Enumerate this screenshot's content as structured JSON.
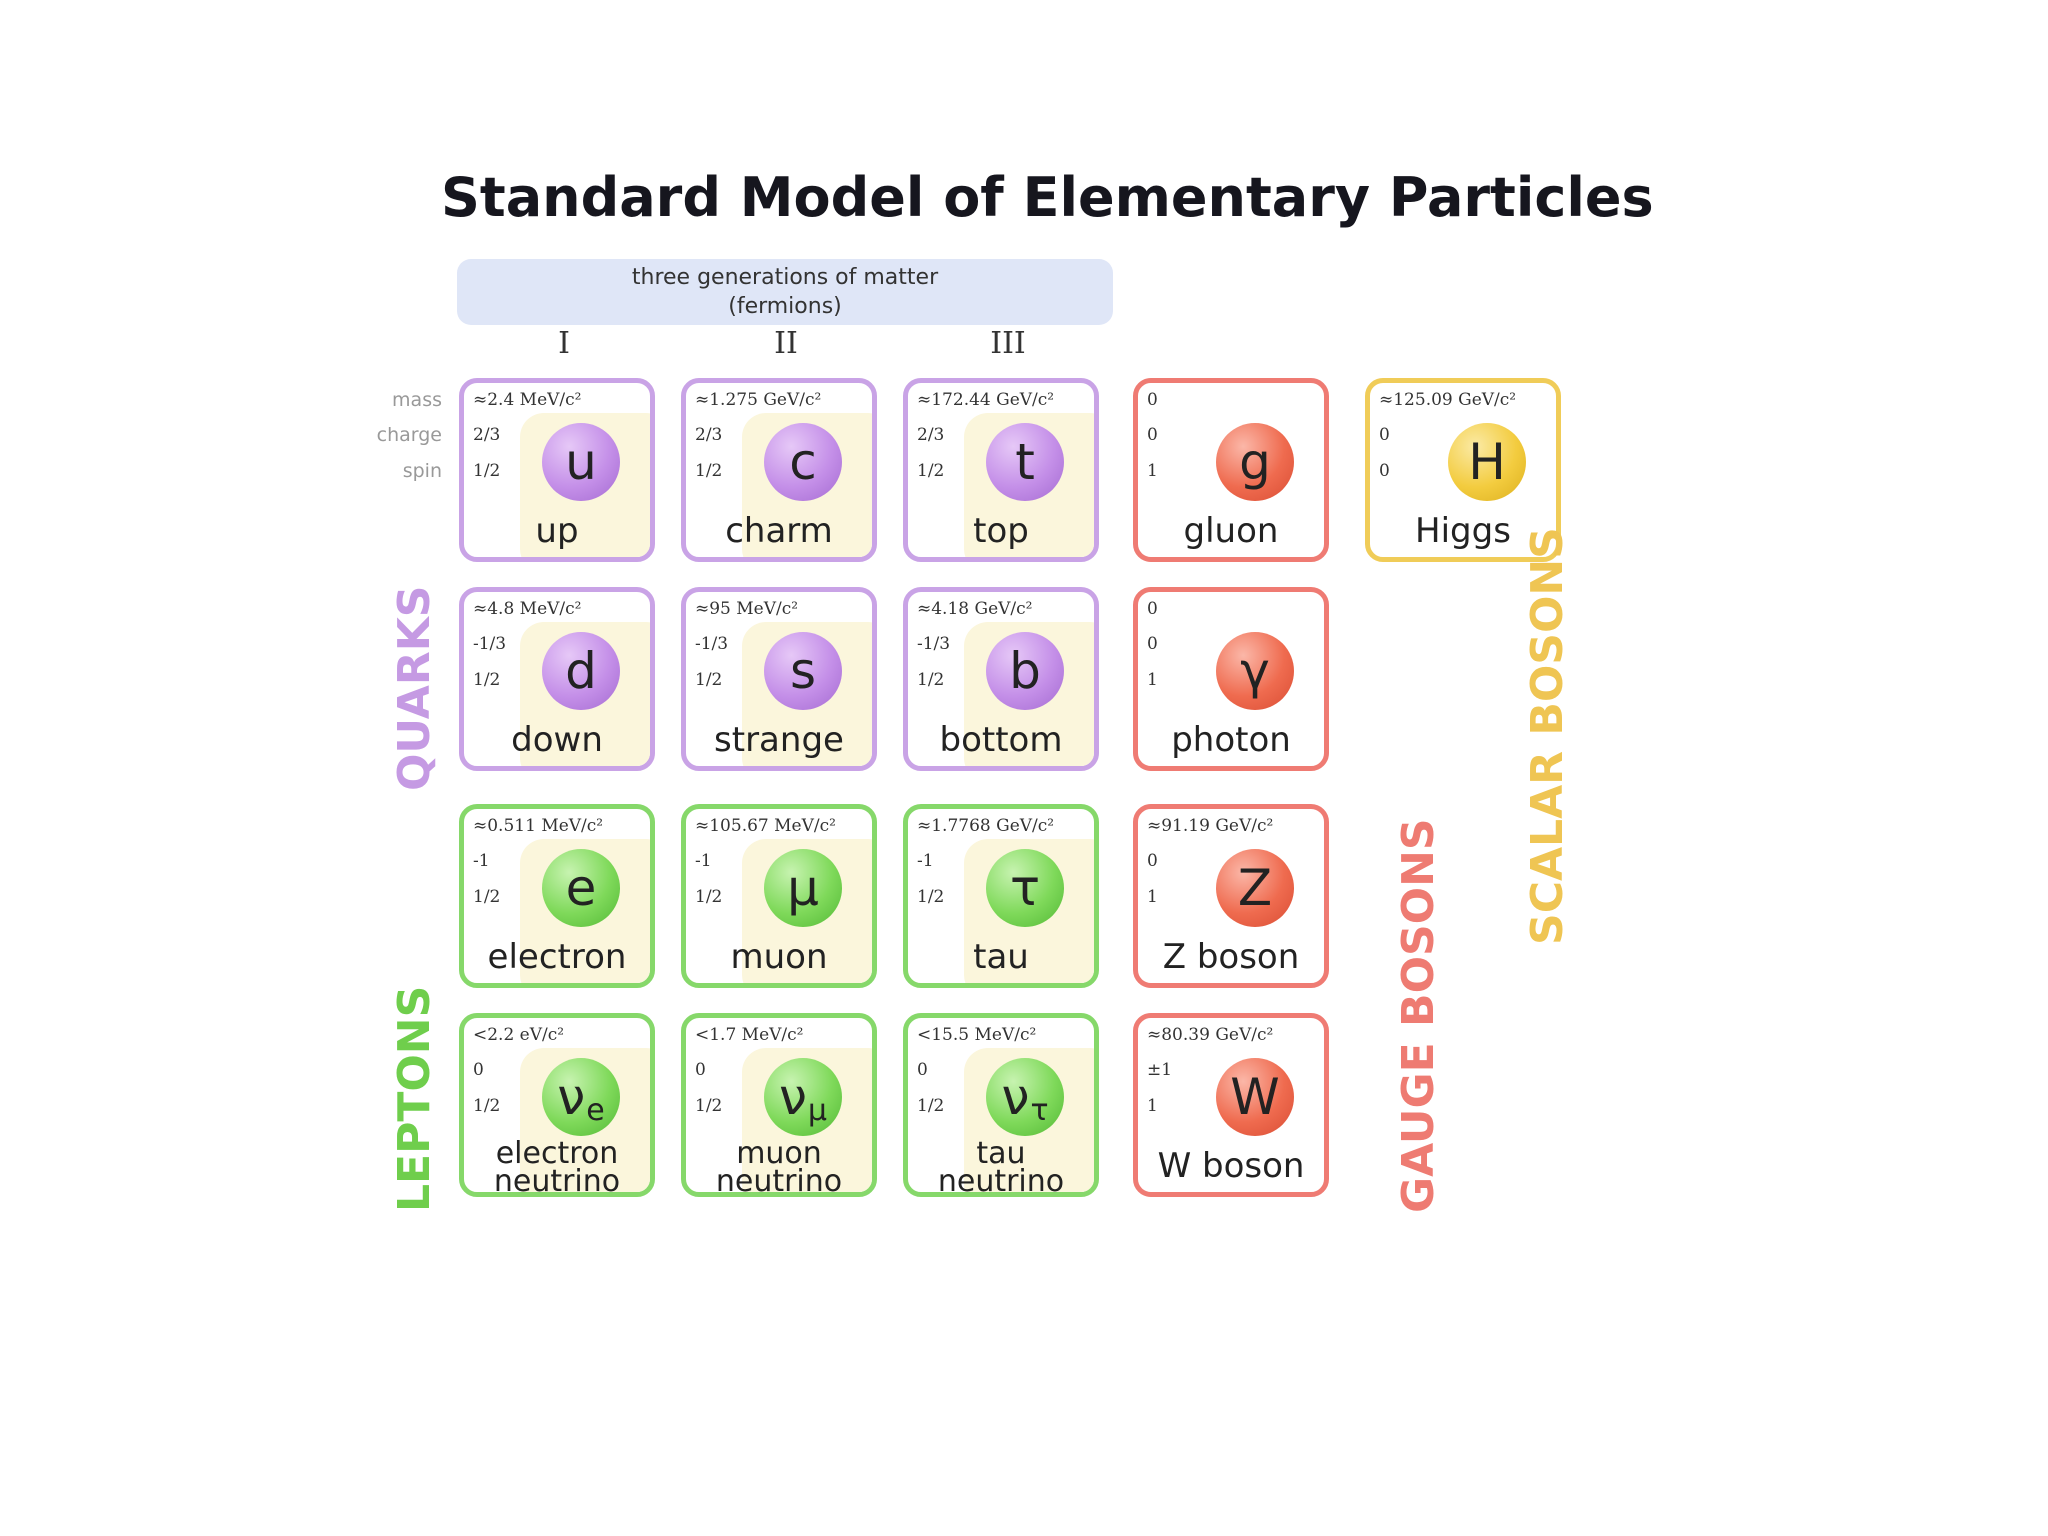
{
  "title": "Standard Model of Elementary Particles",
  "generations": {
    "banner_line1": "three generations of matter",
    "banner_line2": "(fermions)",
    "numerals": [
      "I",
      "II",
      "III"
    ]
  },
  "row_legend": {
    "mass": "mass",
    "charge": "charge",
    "spin": "spin"
  },
  "group_labels": {
    "quarks": "QUARKS",
    "leptons": "LEPTONS",
    "gauge_bosons": "GAUGE BOSONS",
    "scalar_bosons": "SCALAR BOSONS"
  },
  "colors": {
    "quark": "#c9a3e6",
    "lepton": "#86d86a",
    "gauge": "#ef7b73",
    "scalar": "#f0cc58"
  },
  "particles": {
    "up": {
      "mass": "≈2.4 MeV/c²",
      "charge": "2/3",
      "spin": "1/2",
      "symbol": "u",
      "name": "up"
    },
    "charm": {
      "mass": "≈1.275 GeV/c²",
      "charge": "2/3",
      "spin": "1/2",
      "symbol": "c",
      "name": "charm"
    },
    "top": {
      "mass": "≈172.44 GeV/c²",
      "charge": "2/3",
      "spin": "1/2",
      "symbol": "t",
      "name": "top"
    },
    "gluon": {
      "mass": "0",
      "charge": "0",
      "spin": "1",
      "symbol": "g",
      "name": "gluon"
    },
    "higgs": {
      "mass": "≈125.09 GeV/c²",
      "charge": "0",
      "spin": "0",
      "symbol": "H",
      "name": "Higgs"
    },
    "down": {
      "mass": "≈4.8 MeV/c²",
      "charge": "-1/3",
      "spin": "1/2",
      "symbol": "d",
      "name": "down"
    },
    "strange": {
      "mass": "≈95 MeV/c²",
      "charge": "-1/3",
      "spin": "1/2",
      "symbol": "s",
      "name": "strange"
    },
    "bottom": {
      "mass": "≈4.18 GeV/c²",
      "charge": "-1/3",
      "spin": "1/2",
      "symbol": "b",
      "name": "bottom"
    },
    "photon": {
      "mass": "0",
      "charge": "0",
      "spin": "1",
      "symbol": "γ",
      "name": "photon"
    },
    "electron": {
      "mass": "≈0.511 MeV/c²",
      "charge": "-1",
      "spin": "1/2",
      "symbol": "e",
      "name": "electron"
    },
    "muon": {
      "mass": "≈105.67 MeV/c²",
      "charge": "-1",
      "spin": "1/2",
      "symbol": "μ",
      "name": "muon"
    },
    "tau": {
      "mass": "≈1.7768 GeV/c²",
      "charge": "-1",
      "spin": "1/2",
      "symbol": "τ",
      "name": "tau"
    },
    "zboson": {
      "mass": "≈91.19 GeV/c²",
      "charge": "0",
      "spin": "1",
      "symbol": "Z",
      "name": "Z boson"
    },
    "enu": {
      "mass": "<2.2 eV/c²",
      "charge": "0",
      "spin": "1/2",
      "symbol": "ν",
      "sub": "e",
      "name1": "electron",
      "name2": "neutrino"
    },
    "munu": {
      "mass": "<1.7 MeV/c²",
      "charge": "0",
      "spin": "1/2",
      "symbol": "ν",
      "sub": "μ",
      "name1": "muon",
      "name2": "neutrino"
    },
    "taunu": {
      "mass": "<15.5 MeV/c²",
      "charge": "0",
      "spin": "1/2",
      "symbol": "ν",
      "sub": "τ",
      "name1": "tau",
      "name2": "neutrino"
    },
    "wboson": {
      "mass": "≈80.39 GeV/c²",
      "charge": "±1",
      "spin": "1",
      "symbol": "W",
      "name": "W boson"
    }
  }
}
